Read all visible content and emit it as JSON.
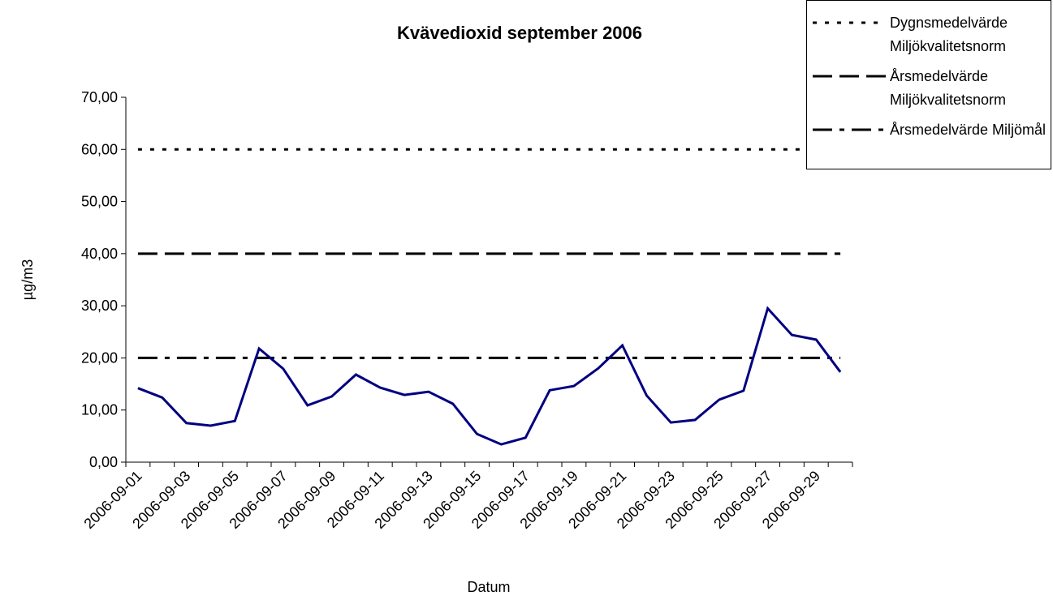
{
  "chart_data": {
    "type": "line",
    "title": "Kvävedioxid september 2006",
    "xlabel": "Datum",
    "ylabel": "µg/m3",
    "categories": [
      "2006-09-01",
      null,
      "2006-09-03",
      null,
      "2006-09-05",
      null,
      "2006-09-07",
      null,
      "2006-09-09",
      null,
      "2006-09-11",
      null,
      "2006-09-13",
      null,
      "2006-09-15",
      null,
      "2006-09-17",
      null,
      "2006-09-19",
      null,
      "2006-09-21",
      null,
      "2006-09-23",
      null,
      "2006-09-25",
      null,
      "2006-09-27",
      null,
      "2006-09-29",
      null
    ],
    "series": [
      {
        "color": "#000080",
        "dash": "solid",
        "values": [
          14.2,
          12.4,
          7.5,
          7.0,
          7.9,
          21.8,
          17.9,
          10.9,
          12.6,
          16.8,
          14.3,
          12.9,
          13.5,
          11.2,
          5.4,
          3.4,
          4.7,
          13.8,
          14.6,
          18.0,
          22.4,
          12.8,
          7.6,
          8.1,
          12.0,
          13.7,
          29.5,
          24.4,
          23.5,
          17.3
        ]
      },
      {
        "name": "Dygnsmedelvärde Miljökvalitetsnorm",
        "color": "#000000",
        "dash": "dotted",
        "values": [
          60,
          60,
          60,
          60,
          60,
          60,
          60,
          60,
          60,
          60,
          60,
          60,
          60,
          60,
          60,
          60,
          60,
          60,
          60,
          60,
          60,
          60,
          60,
          60,
          60,
          60,
          60,
          60,
          60,
          60
        ]
      },
      {
        "name": "Årsmedelvärde Miljökvalitetsnorm",
        "color": "#000000",
        "dash": "dashed",
        "values": [
          40,
          40,
          40,
          40,
          40,
          40,
          40,
          40,
          40,
          40,
          40,
          40,
          40,
          40,
          40,
          40,
          40,
          40,
          40,
          40,
          40,
          40,
          40,
          40,
          40,
          40,
          40,
          40,
          40,
          40
        ]
      },
      {
        "name": "Årsmedelvärde Miljömål",
        "color": "#000000",
        "dash": "dashdot",
        "values": [
          20,
          20,
          20,
          20,
          20,
          20,
          20,
          20,
          20,
          20,
          20,
          20,
          20,
          20,
          20,
          20,
          20,
          20,
          20,
          20,
          20,
          20,
          20,
          20,
          20,
          20,
          20,
          20,
          20,
          20
        ]
      }
    ],
    "ylim": [
      0,
      70
    ],
    "yticks": [
      {
        "value": 0,
        "label": "0,00"
      },
      {
        "value": 10,
        "label": "10,00"
      },
      {
        "value": 20,
        "label": "20,00"
      },
      {
        "value": 30,
        "label": "30,00"
      },
      {
        "value": 40,
        "label": "40,00"
      },
      {
        "value": 50,
        "label": "50,00"
      },
      {
        "value": 60,
        "label": "60,00"
      },
      {
        "value": 70,
        "label": "70,00"
      }
    ],
    "grid": false,
    "legend": "top-right"
  }
}
